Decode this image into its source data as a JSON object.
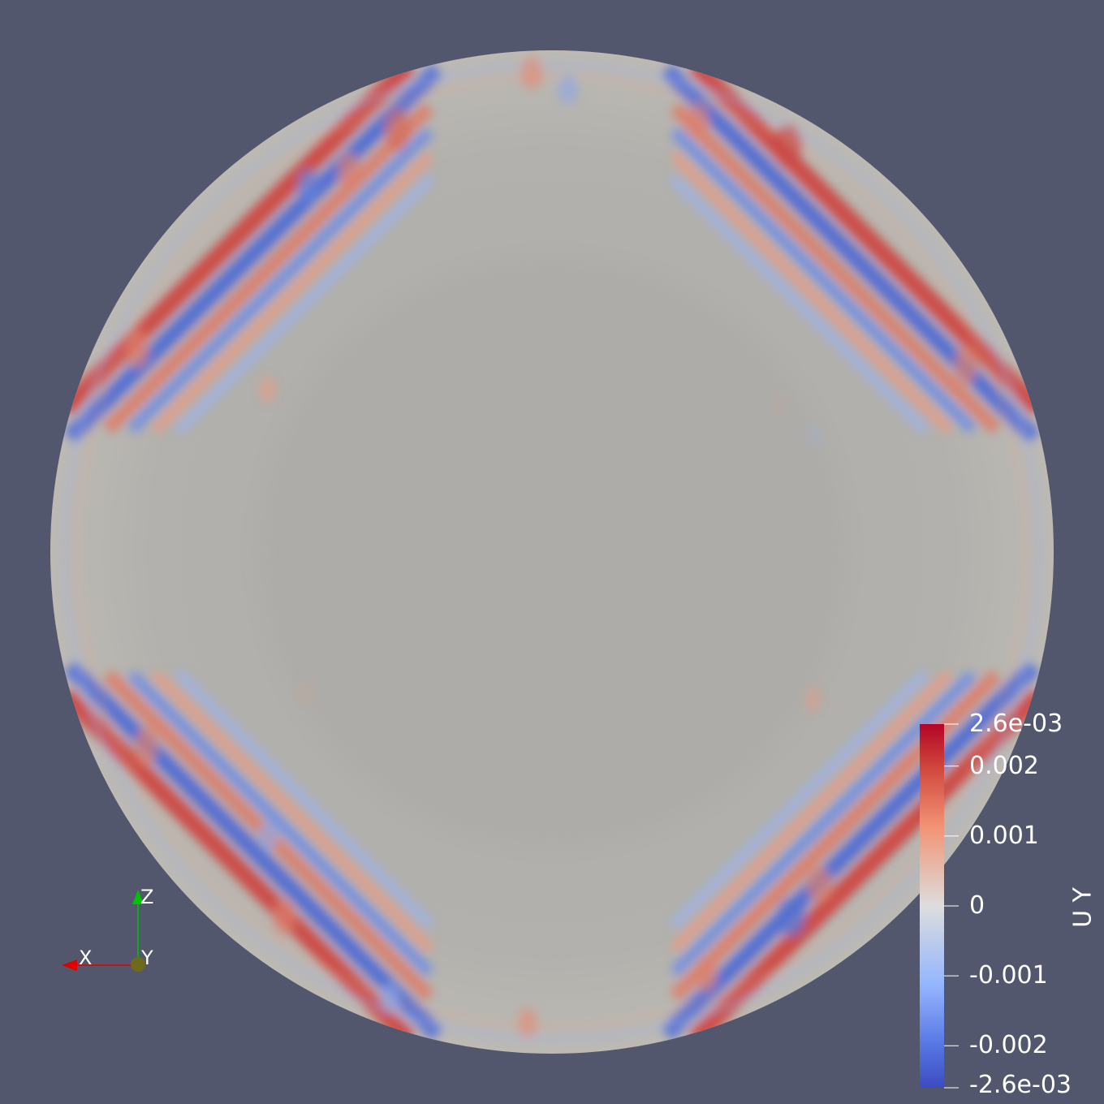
{
  "scalar_bar": {
    "title": "U Y",
    "colors": {
      "max": "#b40426",
      "mid": "#dddddd",
      "min": "#3b4cc0"
    },
    "labels": [
      {
        "text": "2.6e-03",
        "value": 0.0026
      },
      {
        "text": "0.002",
        "value": 0.002
      },
      {
        "text": "0.001",
        "value": 0.001
      },
      {
        "text": "0",
        "value": 0
      },
      {
        "text": "-0.001",
        "value": -0.001
      },
      {
        "text": "-0.002",
        "value": -0.002
      },
      {
        "text": "-2.6e-03",
        "value": -0.0026
      }
    ]
  },
  "orientation_axes": {
    "x_label": "X",
    "y_label": "Y",
    "z_label": "Z",
    "x_color": "#e00000",
    "y_color": "#e0e000",
    "z_color": "#00c000"
  },
  "background_color": "#52576e",
  "surface_color": "#b0afab"
}
